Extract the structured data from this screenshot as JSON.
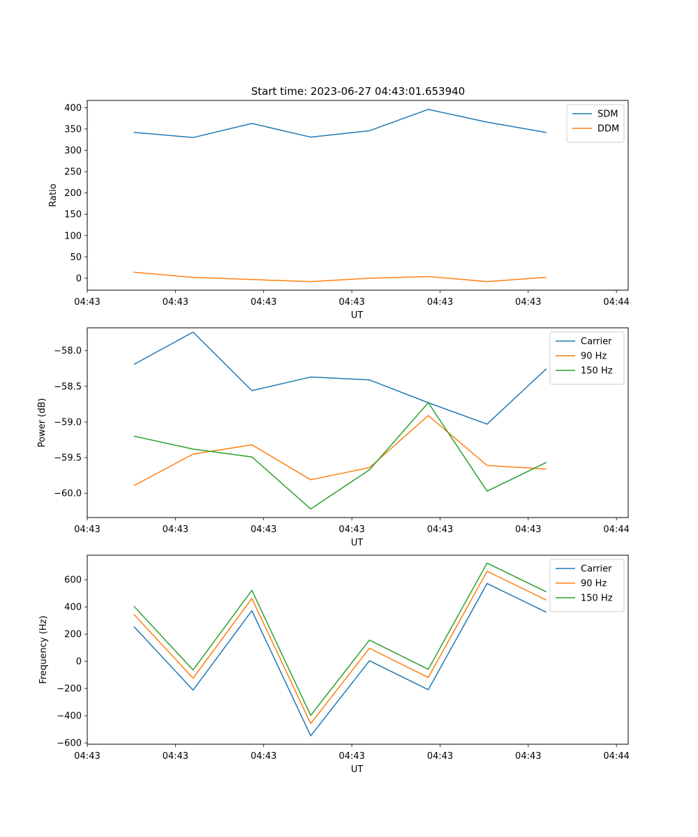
{
  "figure": {
    "title": "Start time: 2023-06-27 04:43:01.653940"
  },
  "colors": {
    "blue": "#1f77b4",
    "orange": "#ff7f0e",
    "green": "#2ca02c"
  },
  "chart_data": [
    {
      "type": "line",
      "title": "Start time: 2023-06-27 04:43:01.653940",
      "xlabel": "UT",
      "ylabel": "Ratio",
      "x": [
        1,
        2,
        3,
        4,
        5,
        6,
        7,
        8
      ],
      "xlim": [
        0.2,
        9.4
      ],
      "x_tick_positions": [
        0.2,
        1.7,
        3.2,
        4.7,
        6.2,
        7.7,
        9.2
      ],
      "x_tick_labels": [
        "04:43",
        "04:43",
        "04:43",
        "04:43",
        "04:43",
        "04:43",
        "04:44"
      ],
      "ylim": [
        -28,
        417
      ],
      "y_ticks": [
        0,
        50,
        100,
        150,
        200,
        250,
        300,
        350,
        400
      ],
      "legend_position": "top-right",
      "grid": false,
      "series": [
        {
          "name": "SDM",
          "color": "#1f77b4",
          "values": [
            342,
            330,
            363,
            331,
            346,
            396,
            366,
            342
          ]
        },
        {
          "name": "DDM",
          "color": "#ff7f0e",
          "values": [
            14,
            2,
            -3,
            -8,
            0,
            4,
            -8,
            2
          ]
        }
      ]
    },
    {
      "type": "line",
      "title": "",
      "xlabel": "UT",
      "ylabel": "Power (dB)",
      "x": [
        1,
        2,
        3,
        4,
        5,
        6,
        7,
        8
      ],
      "xlim": [
        0.2,
        9.4
      ],
      "x_tick_positions": [
        0.2,
        1.7,
        3.2,
        4.7,
        6.2,
        7.7,
        9.2
      ],
      "x_tick_labels": [
        "04:43",
        "04:43",
        "04:43",
        "04:43",
        "04:43",
        "04:43",
        "04:44"
      ],
      "ylim": [
        -60.34,
        -57.68
      ],
      "y_ticks": [
        -60.0,
        -59.5,
        -59.0,
        -58.5,
        -58.0
      ],
      "y_tick_labels": [
        "−60.0",
        "−59.5",
        "−59.0",
        "−58.5",
        "−58.0"
      ],
      "legend_position": "top-right",
      "grid": false,
      "series": [
        {
          "name": "Carrier",
          "color": "#1f77b4",
          "values": [
            -58.19,
            -57.74,
            -58.56,
            -58.37,
            -58.41,
            -58.73,
            -59.03,
            -58.26
          ]
        },
        {
          "name": "90 Hz",
          "color": "#ff7f0e",
          "values": [
            -59.89,
            -59.45,
            -59.32,
            -59.81,
            -59.64,
            -58.91,
            -59.61,
            -59.66
          ]
        },
        {
          "name": "150 Hz",
          "color": "#2ca02c",
          "values": [
            -59.2,
            -59.38,
            -59.49,
            -60.22,
            -59.67,
            -58.73,
            -59.97,
            -59.57
          ]
        }
      ]
    },
    {
      "type": "line",
      "title": "",
      "xlabel": "UT",
      "ylabel": "Frequency (Hz)",
      "x": [
        1,
        2,
        3,
        4,
        5,
        6,
        7,
        8
      ],
      "xlim": [
        0.2,
        9.4
      ],
      "x_tick_positions": [
        0.2,
        1.7,
        3.2,
        4.7,
        6.2,
        7.7,
        9.2
      ],
      "x_tick_labels": [
        "04:43",
        "04:43",
        "04:43",
        "04:43",
        "04:43",
        "04:43",
        "04:44"
      ],
      "ylim": [
        -610,
        780
      ],
      "y_ticks": [
        -600,
        -400,
        -200,
        0,
        200,
        400,
        600
      ],
      "y_tick_labels": [
        "−600",
        "−400",
        "−200",
        "0",
        "200",
        "400",
        "600"
      ],
      "legend_position": "top-right",
      "grid": false,
      "series": [
        {
          "name": "Carrier",
          "color": "#1f77b4",
          "values": [
            252,
            -212,
            372,
            -548,
            4,
            -209,
            572,
            362
          ]
        },
        {
          "name": "90 Hz",
          "color": "#ff7f0e",
          "values": [
            342,
            -124,
            462,
            -458,
            96,
            -119,
            662,
            452
          ]
        },
        {
          "name": "150 Hz",
          "color": "#2ca02c",
          "values": [
            402,
            -64,
            522,
            -398,
            156,
            -59,
            722,
            512
          ]
        }
      ]
    }
  ]
}
